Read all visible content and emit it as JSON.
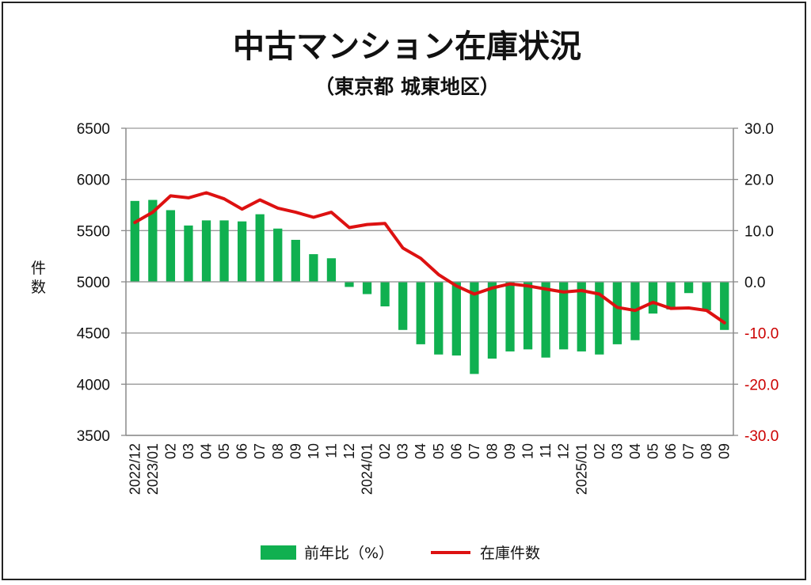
{
  "chart_data": {
    "type": "bar+line",
    "title": "中古マンション在庫状況",
    "subtitle": "（東京都 城東地区）",
    "ylabel_left": "件数",
    "ylim_left": [
      3500,
      6500
    ],
    "yticks_left": [
      "6500",
      "6000",
      "5500",
      "5000",
      "4500",
      "4000",
      "3500"
    ],
    "ylim_right": [
      -30,
      30
    ],
    "yticks_right": [
      "30.0",
      "20.0",
      "10.0",
      "0.0",
      "-10.0",
      "-20.0",
      "-30.0"
    ],
    "yticks_right_values": [
      30,
      20,
      10,
      0,
      -10,
      -20,
      -30
    ],
    "categories": [
      "2022/12",
      "2023/01",
      "02",
      "03",
      "04",
      "05",
      "06",
      "07",
      "08",
      "09",
      "10",
      "11",
      "12",
      "2024/01",
      "02",
      "03",
      "04",
      "05",
      "06",
      "07",
      "08",
      "09",
      "10",
      "11",
      "12",
      "2025/01",
      "02",
      "03",
      "04",
      "05",
      "06",
      "07",
      "08",
      "09"
    ],
    "series": [
      {
        "name": "前年比（%）",
        "type": "bar",
        "axis": "right",
        "color": "#10b050",
        "values": [
          15.8,
          16.0,
          14.0,
          11.0,
          12.0,
          12.0,
          11.8,
          13.2,
          10.4,
          8.2,
          5.4,
          4.6,
          -1.0,
          -2.4,
          -4.8,
          -9.4,
          -12.2,
          -14.2,
          -14.4,
          -18.0,
          -15.0,
          -13.6,
          -13.2,
          -14.8,
          -13.2,
          -13.6,
          -14.2,
          -12.2,
          -11.4,
          -6.2,
          -5.4,
          -2.2,
          -5.6,
          -9.4
        ]
      },
      {
        "name": "在庫件数",
        "type": "line",
        "axis": "left",
        "color": "#dd1111",
        "values": [
          5580,
          5680,
          5840,
          5820,
          5870,
          5810,
          5710,
          5800,
          5720,
          5680,
          5630,
          5680,
          5530,
          5560,
          5570,
          5330,
          5230,
          5070,
          4960,
          4880,
          4940,
          4980,
          4960,
          4930,
          4900,
          4915,
          4880,
          4750,
          4720,
          4800,
          4740,
          4745,
          4720,
          4600
        ]
      }
    ],
    "xtick_labels": [
      "2022/12",
      "2023/01",
      "02",
      "03",
      "04",
      "05",
      "06",
      "07",
      "08",
      "09",
      "10",
      "11",
      "12",
      "2024/01",
      "02",
      "03",
      "04",
      "05",
      "06",
      "07",
      "08",
      "09",
      "10",
      "11",
      "12",
      "2025/01",
      "02",
      "03",
      "04",
      "05",
      "06",
      "07",
      "08",
      "09"
    ],
    "legend": {
      "position": "bottom-center"
    }
  }
}
